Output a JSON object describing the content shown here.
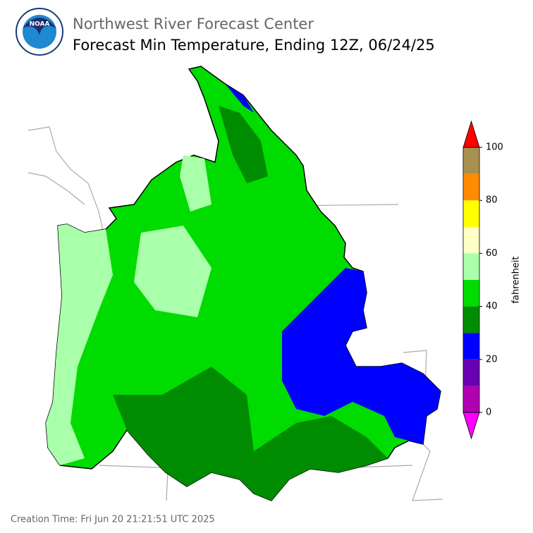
{
  "header": {
    "organization": "Northwest River Forecast Center",
    "title": "Forecast Min Temperature, Ending 12Z, 06/24/25"
  },
  "colorbar": {
    "label": "fahrenheit",
    "levels": [
      0,
      10,
      20,
      30,
      40,
      50,
      60,
      70,
      80,
      90,
      100
    ],
    "colors": [
      "#b000b0",
      "#6600b0",
      "#0000ff",
      "#008c00",
      "#00dc00",
      "#aaffaa",
      "#ffffc8",
      "#ffff00",
      "#ff8c00",
      "#a89050"
    ],
    "under_color": "#ff00ff",
    "over_color": "#ff0000",
    "ticks": [
      0,
      20,
      40,
      60,
      80,
      100
    ]
  },
  "footer": {
    "creation_time": "Creation Time: Fri Jun 20 21:21:51 UTC 2025"
  }
}
